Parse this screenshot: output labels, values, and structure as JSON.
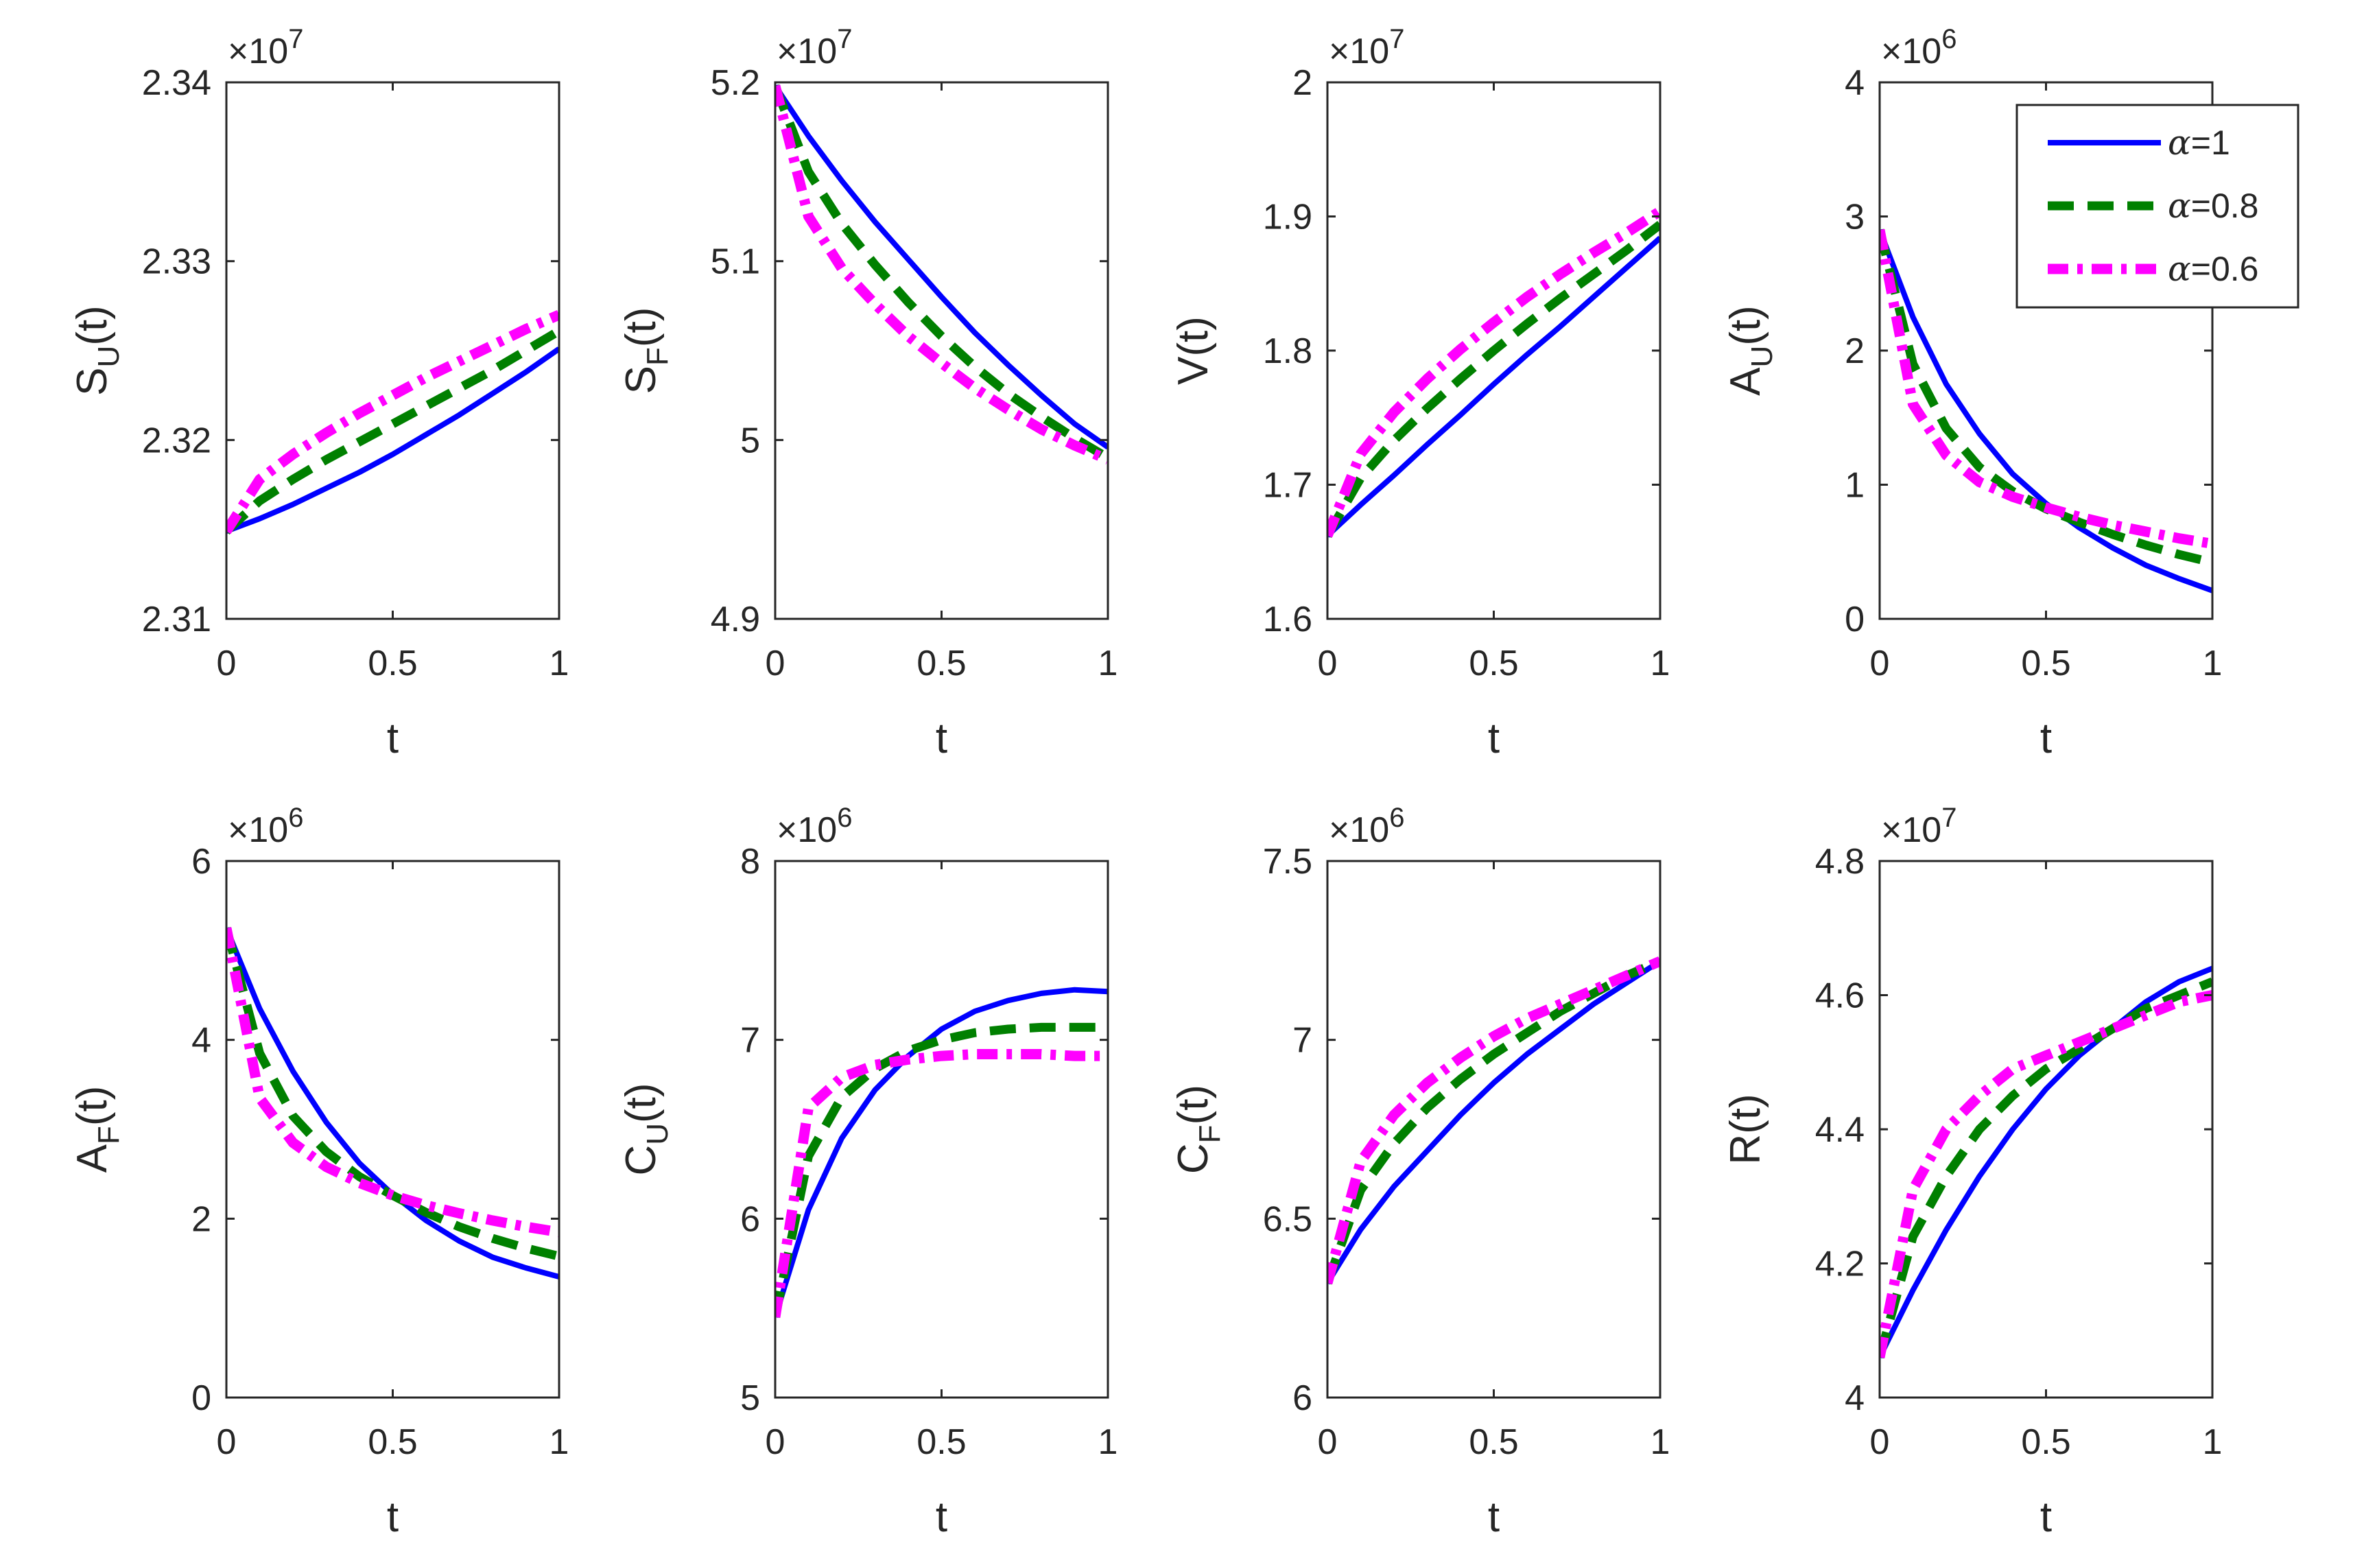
{
  "figure": {
    "legend": [
      {
        "symbol": "α",
        "label": "=1"
      },
      {
        "symbol": "α",
        "label": "=0.8"
      },
      {
        "symbol": "α",
        "label": "=0.6"
      }
    ]
  },
  "colors": {
    "alpha_1": "#0000ff",
    "alpha_0_8": "#008000",
    "alpha_0_6": "#ff00ff",
    "axis": "#262626"
  },
  "chart_data": [
    {
      "type": "line",
      "ylabel": {
        "main": "S",
        "sub": "U",
        "tail": "(t)"
      },
      "xlabel": "t",
      "exponent": "×10",
      "exponent_power": "7",
      "xlim": [
        0,
        1
      ],
      "ylim": [
        2.31,
        2.34
      ],
      "xticks": [
        "0",
        "0.5",
        "1"
      ],
      "xtick_values": [
        0,
        0.5,
        1
      ],
      "yticks": [
        "2.31",
        "2.32",
        "2.33",
        "2.34"
      ],
      "ytick_values": [
        2.31,
        2.32,
        2.33,
        2.34
      ],
      "x": [
        0,
        0.1,
        0.2,
        0.3,
        0.4,
        0.5,
        0.6,
        0.7,
        0.8,
        0.9,
        1.0
      ],
      "series": [
        {
          "name": "α=1",
          "values": [
            2.3149,
            2.3156,
            2.3164,
            2.3173,
            2.3182,
            2.3192,
            2.3203,
            2.3214,
            2.3226,
            2.3238,
            2.3251
          ]
        },
        {
          "name": "α=0.8",
          "values": [
            2.3149,
            2.3166,
            2.3178,
            2.3189,
            2.3199,
            2.3209,
            2.3219,
            2.3229,
            2.3239,
            2.325,
            2.3261
          ]
        },
        {
          "name": "α=0.6",
          "values": [
            2.3149,
            2.3178,
            2.3192,
            2.3204,
            2.3215,
            2.3225,
            2.3235,
            2.3244,
            2.3253,
            2.3262,
            2.327
          ]
        }
      ]
    },
    {
      "type": "line",
      "ylabel": {
        "main": "S",
        "sub": "F",
        "tail": "(t)"
      },
      "xlabel": "t",
      "exponent": "×10",
      "exponent_power": "7",
      "xlim": [
        0,
        1
      ],
      "ylim": [
        4.9,
        5.2
      ],
      "xticks": [
        "0",
        "0.5",
        "1"
      ],
      "xtick_values": [
        0,
        0.5,
        1
      ],
      "yticks": [
        "4.9",
        "5",
        "5.1",
        "5.2"
      ],
      "ytick_values": [
        4.9,
        5.0,
        5.1,
        5.2
      ],
      "x": [
        0,
        0.1,
        0.2,
        0.3,
        0.4,
        0.5,
        0.6,
        0.7,
        0.8,
        0.9,
        1.0
      ],
      "series": [
        {
          "name": "α=1",
          "values": [
            5.198,
            5.17,
            5.145,
            5.122,
            5.101,
            5.08,
            5.06,
            5.042,
            5.025,
            5.009,
            4.996
          ]
        },
        {
          "name": "α=0.8",
          "values": [
            5.198,
            5.15,
            5.121,
            5.098,
            5.077,
            5.058,
            5.041,
            5.026,
            5.013,
            5.001,
            4.99
          ]
        },
        {
          "name": "α=0.6",
          "values": [
            5.198,
            5.125,
            5.096,
            5.076,
            5.058,
            5.043,
            5.029,
            5.017,
            5.006,
            4.997,
            4.989
          ]
        }
      ]
    },
    {
      "type": "line",
      "ylabel": {
        "main": "V(t)",
        "sub": "",
        "tail": ""
      },
      "xlabel": "t",
      "exponent": "×10",
      "exponent_power": "7",
      "xlim": [
        0,
        1
      ],
      "ylim": [
        1.6,
        2.0
      ],
      "xticks": [
        "0",
        "0.5",
        "1"
      ],
      "xtick_values": [
        0,
        0.5,
        1
      ],
      "yticks": [
        "1.6",
        "1.7",
        "1.8",
        "1.9",
        "2"
      ],
      "ytick_values": [
        1.6,
        1.7,
        1.8,
        1.9,
        2.0
      ],
      "x": [
        0,
        0.1,
        0.2,
        0.3,
        0.4,
        0.5,
        0.6,
        0.7,
        0.8,
        0.9,
        1.0
      ],
      "series": [
        {
          "name": "α=1",
          "values": [
            1.662,
            1.685,
            1.707,
            1.73,
            1.752,
            1.775,
            1.797,
            1.818,
            1.84,
            1.862,
            1.884
          ]
        },
        {
          "name": "α=0.8",
          "values": [
            1.662,
            1.705,
            1.733,
            1.757,
            1.779,
            1.8,
            1.82,
            1.839,
            1.857,
            1.875,
            1.894
          ]
        },
        {
          "name": "α=0.6",
          "values": [
            1.662,
            1.723,
            1.754,
            1.779,
            1.801,
            1.821,
            1.84,
            1.857,
            1.873,
            1.888,
            1.904
          ]
        }
      ]
    },
    {
      "type": "line",
      "ylabel": {
        "main": "A",
        "sub": "U",
        "tail": "(t)"
      },
      "xlabel": "t",
      "exponent": "×10",
      "exponent_power": "6",
      "xlim": [
        0,
        1
      ],
      "ylim": [
        0,
        4
      ],
      "xticks": [
        "0",
        "0.5",
        "1"
      ],
      "xtick_values": [
        0,
        0.5,
        1
      ],
      "yticks": [
        "0",
        "1",
        "2",
        "3",
        "4"
      ],
      "ytick_values": [
        0,
        1,
        2,
        3,
        4
      ],
      "legend": true,
      "x": [
        0,
        0.1,
        0.2,
        0.3,
        0.4,
        0.5,
        0.6,
        0.7,
        0.8,
        0.9,
        1.0
      ],
      "series": [
        {
          "name": "α=1",
          "values": [
            2.9,
            2.25,
            1.75,
            1.38,
            1.08,
            0.86,
            0.68,
            0.53,
            0.4,
            0.3,
            0.21
          ]
        },
        {
          "name": "α=0.8",
          "values": [
            2.9,
            1.9,
            1.42,
            1.13,
            0.95,
            0.82,
            0.72,
            0.63,
            0.55,
            0.48,
            0.42
          ]
        },
        {
          "name": "α=0.6",
          "values": [
            2.9,
            1.6,
            1.22,
            1.02,
            0.91,
            0.83,
            0.76,
            0.7,
            0.65,
            0.6,
            0.56
          ]
        }
      ]
    },
    {
      "type": "line",
      "ylabel": {
        "main": "A",
        "sub": "F",
        "tail": "(t)"
      },
      "xlabel": "t",
      "exponent": "×10",
      "exponent_power": "6",
      "xlim": [
        0,
        1
      ],
      "ylim": [
        0,
        6
      ],
      "xticks": [
        "0",
        "0.5",
        "1"
      ],
      "xtick_values": [
        0,
        0.5,
        1
      ],
      "yticks": [
        "0",
        "2",
        "4",
        "6"
      ],
      "ytick_values": [
        0,
        2,
        4,
        6
      ],
      "x": [
        0,
        0.1,
        0.2,
        0.3,
        0.4,
        0.5,
        0.6,
        0.7,
        0.8,
        0.9,
        1.0
      ],
      "series": [
        {
          "name": "α=1",
          "values": [
            5.25,
            4.35,
            3.65,
            3.08,
            2.62,
            2.27,
            1.98,
            1.75,
            1.57,
            1.45,
            1.35
          ]
        },
        {
          "name": "α=0.8",
          "values": [
            5.25,
            3.85,
            3.15,
            2.75,
            2.47,
            2.26,
            2.07,
            1.91,
            1.78,
            1.67,
            1.58
          ]
        },
        {
          "name": "α=0.6",
          "values": [
            5.25,
            3.35,
            2.85,
            2.58,
            2.4,
            2.26,
            2.15,
            2.06,
            1.98,
            1.91,
            1.85
          ]
        }
      ]
    },
    {
      "type": "line",
      "ylabel": {
        "main": "C",
        "sub": "U",
        "tail": "(t)"
      },
      "xlabel": "t",
      "exponent": "×10",
      "exponent_power": "6",
      "xlim": [
        0,
        1
      ],
      "ylim": [
        5,
        8
      ],
      "xticks": [
        "0",
        "0.5",
        "1"
      ],
      "xtick_values": [
        0,
        0.5,
        1
      ],
      "yticks": [
        "5",
        "6",
        "7",
        "8"
      ],
      "ytick_values": [
        5,
        6,
        7,
        8
      ],
      "x": [
        0,
        0.1,
        0.2,
        0.3,
        0.4,
        0.5,
        0.6,
        0.7,
        0.8,
        0.9,
        1.0
      ],
      "series": [
        {
          "name": "α=1",
          "values": [
            5.45,
            6.05,
            6.45,
            6.72,
            6.91,
            7.06,
            7.16,
            7.22,
            7.26,
            7.28,
            7.27
          ]
        },
        {
          "name": "α=0.8",
          "values": [
            5.45,
            6.35,
            6.68,
            6.84,
            6.94,
            7.0,
            7.04,
            7.06,
            7.07,
            7.07,
            7.07
          ]
        },
        {
          "name": "α=0.6",
          "values": [
            5.45,
            6.62,
            6.79,
            6.86,
            6.89,
            6.91,
            6.92,
            6.92,
            6.92,
            6.91,
            6.91
          ]
        }
      ]
    },
    {
      "type": "line",
      "ylabel": {
        "main": "C",
        "sub": "F",
        "tail": "(t)"
      },
      "xlabel": "t",
      "exponent": "×10",
      "exponent_power": "6",
      "xlim": [
        0,
        1
      ],
      "ylim": [
        6,
        7.5
      ],
      "xticks": [
        "0",
        "0.5",
        "1"
      ],
      "xtick_values": [
        0,
        0.5,
        1
      ],
      "yticks": [
        "6",
        "6.5",
        "7",
        "7.5"
      ],
      "ytick_values": [
        6,
        6.5,
        7,
        7.5
      ],
      "x": [
        0,
        0.1,
        0.2,
        0.3,
        0.4,
        0.5,
        0.6,
        0.7,
        0.8,
        0.9,
        1.0
      ],
      "series": [
        {
          "name": "α=1",
          "values": [
            6.32,
            6.47,
            6.59,
            6.69,
            6.79,
            6.88,
            6.96,
            7.03,
            7.1,
            7.16,
            7.22
          ]
        },
        {
          "name": "α=0.8",
          "values": [
            6.32,
            6.58,
            6.71,
            6.81,
            6.89,
            6.96,
            7.02,
            7.08,
            7.13,
            7.18,
            7.22
          ]
        },
        {
          "name": "α=0.6",
          "values": [
            6.32,
            6.66,
            6.79,
            6.88,
            6.95,
            7.01,
            7.06,
            7.1,
            7.14,
            7.18,
            7.22
          ]
        }
      ]
    },
    {
      "type": "line",
      "ylabel": {
        "main": "R(t)",
        "sub": "",
        "tail": ""
      },
      "xlabel": "t",
      "exponent": "×10",
      "exponent_power": "7",
      "xlim": [
        0,
        1
      ],
      "ylim": [
        4.0,
        4.8
      ],
      "xticks": [
        "0",
        "0.5",
        "1"
      ],
      "xtick_values": [
        0,
        0.5,
        1
      ],
      "yticks": [
        "4",
        "4.2",
        "4.4",
        "4.6",
        "4.8"
      ],
      "ytick_values": [
        4.0,
        4.2,
        4.4,
        4.6,
        4.8
      ],
      "x": [
        0,
        0.1,
        0.2,
        0.3,
        0.4,
        0.5,
        0.6,
        0.7,
        0.8,
        0.9,
        1.0
      ],
      "series": [
        {
          "name": "α=1",
          "values": [
            4.06,
            4.16,
            4.25,
            4.33,
            4.4,
            4.46,
            4.51,
            4.55,
            4.59,
            4.62,
            4.64
          ]
        },
        {
          "name": "α=0.8",
          "values": [
            4.06,
            4.24,
            4.33,
            4.4,
            4.45,
            4.49,
            4.52,
            4.55,
            4.58,
            4.6,
            4.62
          ]
        },
        {
          "name": "α=0.6",
          "values": [
            4.06,
            4.31,
            4.4,
            4.45,
            4.49,
            4.51,
            4.53,
            4.55,
            4.57,
            4.59,
            4.6
          ]
        }
      ]
    }
  ]
}
